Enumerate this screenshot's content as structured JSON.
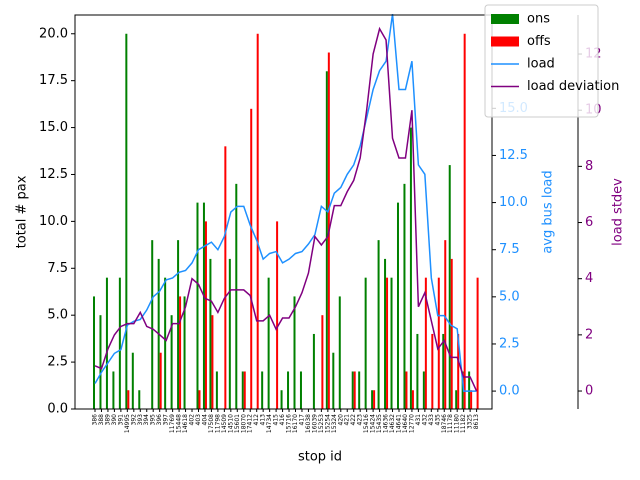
{
  "chart_data": {
    "type": "bar",
    "xlabel": "stop id",
    "ylabel": "total # pax",
    "y2label": "avg bus load",
    "y3label": "load stdev",
    "categories": [
      "386",
      "388",
      "389",
      "390",
      "391",
      "14995",
      "392",
      "393",
      "394",
      "395",
      "396",
      "397",
      "11769",
      "15448",
      "14618",
      "402",
      "403",
      "404",
      "17508",
      "11798",
      "14509",
      "14510",
      "15601",
      "18070",
      "17412",
      "412",
      "413",
      "14734",
      "415",
      "416",
      "15716",
      "16170",
      "417",
      "16038",
      "16039",
      "15253",
      "15254",
      "15324",
      "420",
      "421",
      "422",
      "423",
      "15416",
      "15424",
      "15435",
      "14636",
      "14632",
      "14641",
      "14640",
      "12770",
      "431",
      "432",
      "433",
      "435",
      "18746",
      "11178",
      "11180",
      "11182",
      "3325",
      "8613"
    ],
    "series": [
      {
        "name": "ons",
        "type": "bar",
        "color": "#008000",
        "axis": "y",
        "values": [
          6,
          5,
          7,
          2,
          7,
          20,
          3,
          1,
          0,
          9,
          8,
          7,
          5,
          9,
          6,
          0,
          11,
          11,
          8,
          2,
          0,
          8,
          12,
          2,
          0,
          0,
          2,
          7,
          0,
          1,
          2,
          6,
          2,
          0,
          4,
          0,
          18,
          3,
          6,
          0,
          2,
          2,
          7,
          1,
          9,
          8,
          7,
          11,
          12,
          15,
          4,
          2,
          0,
          0,
          4,
          13,
          1,
          2,
          2,
          0
        ]
      },
      {
        "name": "offs",
        "type": "bar",
        "color": "#ff0000",
        "axis": "y",
        "values": [
          0,
          0,
          0,
          0,
          0,
          1,
          0,
          0,
          0,
          0,
          3,
          0,
          0,
          6,
          0,
          0,
          1,
          10,
          5,
          0,
          14,
          0,
          0,
          2,
          16,
          20,
          0,
          0,
          10,
          0,
          0,
          0,
          0,
          0,
          0,
          5,
          19,
          0,
          0,
          0,
          2,
          0,
          0,
          1,
          0,
          7,
          0,
          0,
          2,
          1,
          0,
          7,
          4,
          7,
          9,
          8,
          4,
          20,
          1,
          7
        ]
      },
      {
        "name": "load",
        "type": "line",
        "color": "#1e90ff",
        "axis": "y2",
        "values": [
          0.4,
          1,
          1.5,
          2,
          2.2,
          3.5,
          3.7,
          3.8,
          4.3,
          5,
          5.3,
          5.9,
          6,
          6.3,
          6.4,
          6.8,
          7.5,
          7.7,
          7.9,
          7.5,
          8.2,
          9.5,
          9.8,
          9.8,
          8.8,
          8,
          7,
          7.3,
          7.4,
          6.8,
          7,
          7.3,
          7.4,
          7.8,
          8.3,
          9.8,
          9.5,
          10.5,
          10.8,
          11.5,
          12,
          13,
          14.5,
          16,
          17,
          17.5,
          20,
          16,
          16,
          17.5,
          12,
          11.5,
          6,
          4,
          4,
          3.5,
          3.3,
          0,
          0,
          0
        ]
      },
      {
        "name": "load deviation",
        "type": "line",
        "color": "#800080",
        "axis": "y3",
        "values": [
          0.9,
          0.8,
          1.5,
          2,
          2.3,
          2.4,
          2.4,
          2.8,
          2.3,
          2.2,
          2,
          1.8,
          2.4,
          2.4,
          3,
          4,
          3.8,
          3.3,
          3.2,
          2.8,
          3.3,
          3.6,
          3.6,
          3.6,
          3.4,
          2.5,
          2.5,
          2.7,
          2.2,
          2.6,
          2.6,
          3,
          3.5,
          4.2,
          5.5,
          5.2,
          5.5,
          6.6,
          6.6,
          7.1,
          7.5,
          8.3,
          10,
          12,
          12.9,
          12.5,
          9,
          8.3,
          8.3,
          10,
          3,
          3.5,
          2.5,
          1.5,
          1.8,
          1.2,
          1.2,
          0.5,
          0.5,
          0
        ]
      }
    ],
    "ylim": [
      0,
      21
    ],
    "yticks": [
      {
        "value": 0,
        "label": "0.0"
      },
      2.5,
      {
        "value": 5,
        "label": "5.0"
      },
      7.5,
      {
        "value": 10,
        "label": "10.0"
      },
      12.5,
      {
        "value": 15,
        "label": "15.0"
      },
      17.5,
      {
        "value": 20,
        "label": "20.0"
      }
    ],
    "y2lim": [
      -0.95,
      19.95
    ],
    "y2ticks": [
      {
        "value": 0,
        "label": "0.0"
      },
      2.5,
      {
        "value": 5,
        "label": "5.0"
      },
      7.5,
      {
        "value": 10,
        "label": "10.0"
      },
      12.5,
      {
        "value": 15,
        "label": "15.0"
      }
    ],
    "y3lim": [
      -0.64,
      13.39
    ],
    "y3ticks": [
      0,
      2,
      4,
      6,
      8,
      10,
      12
    ],
    "legend": "upper right"
  }
}
